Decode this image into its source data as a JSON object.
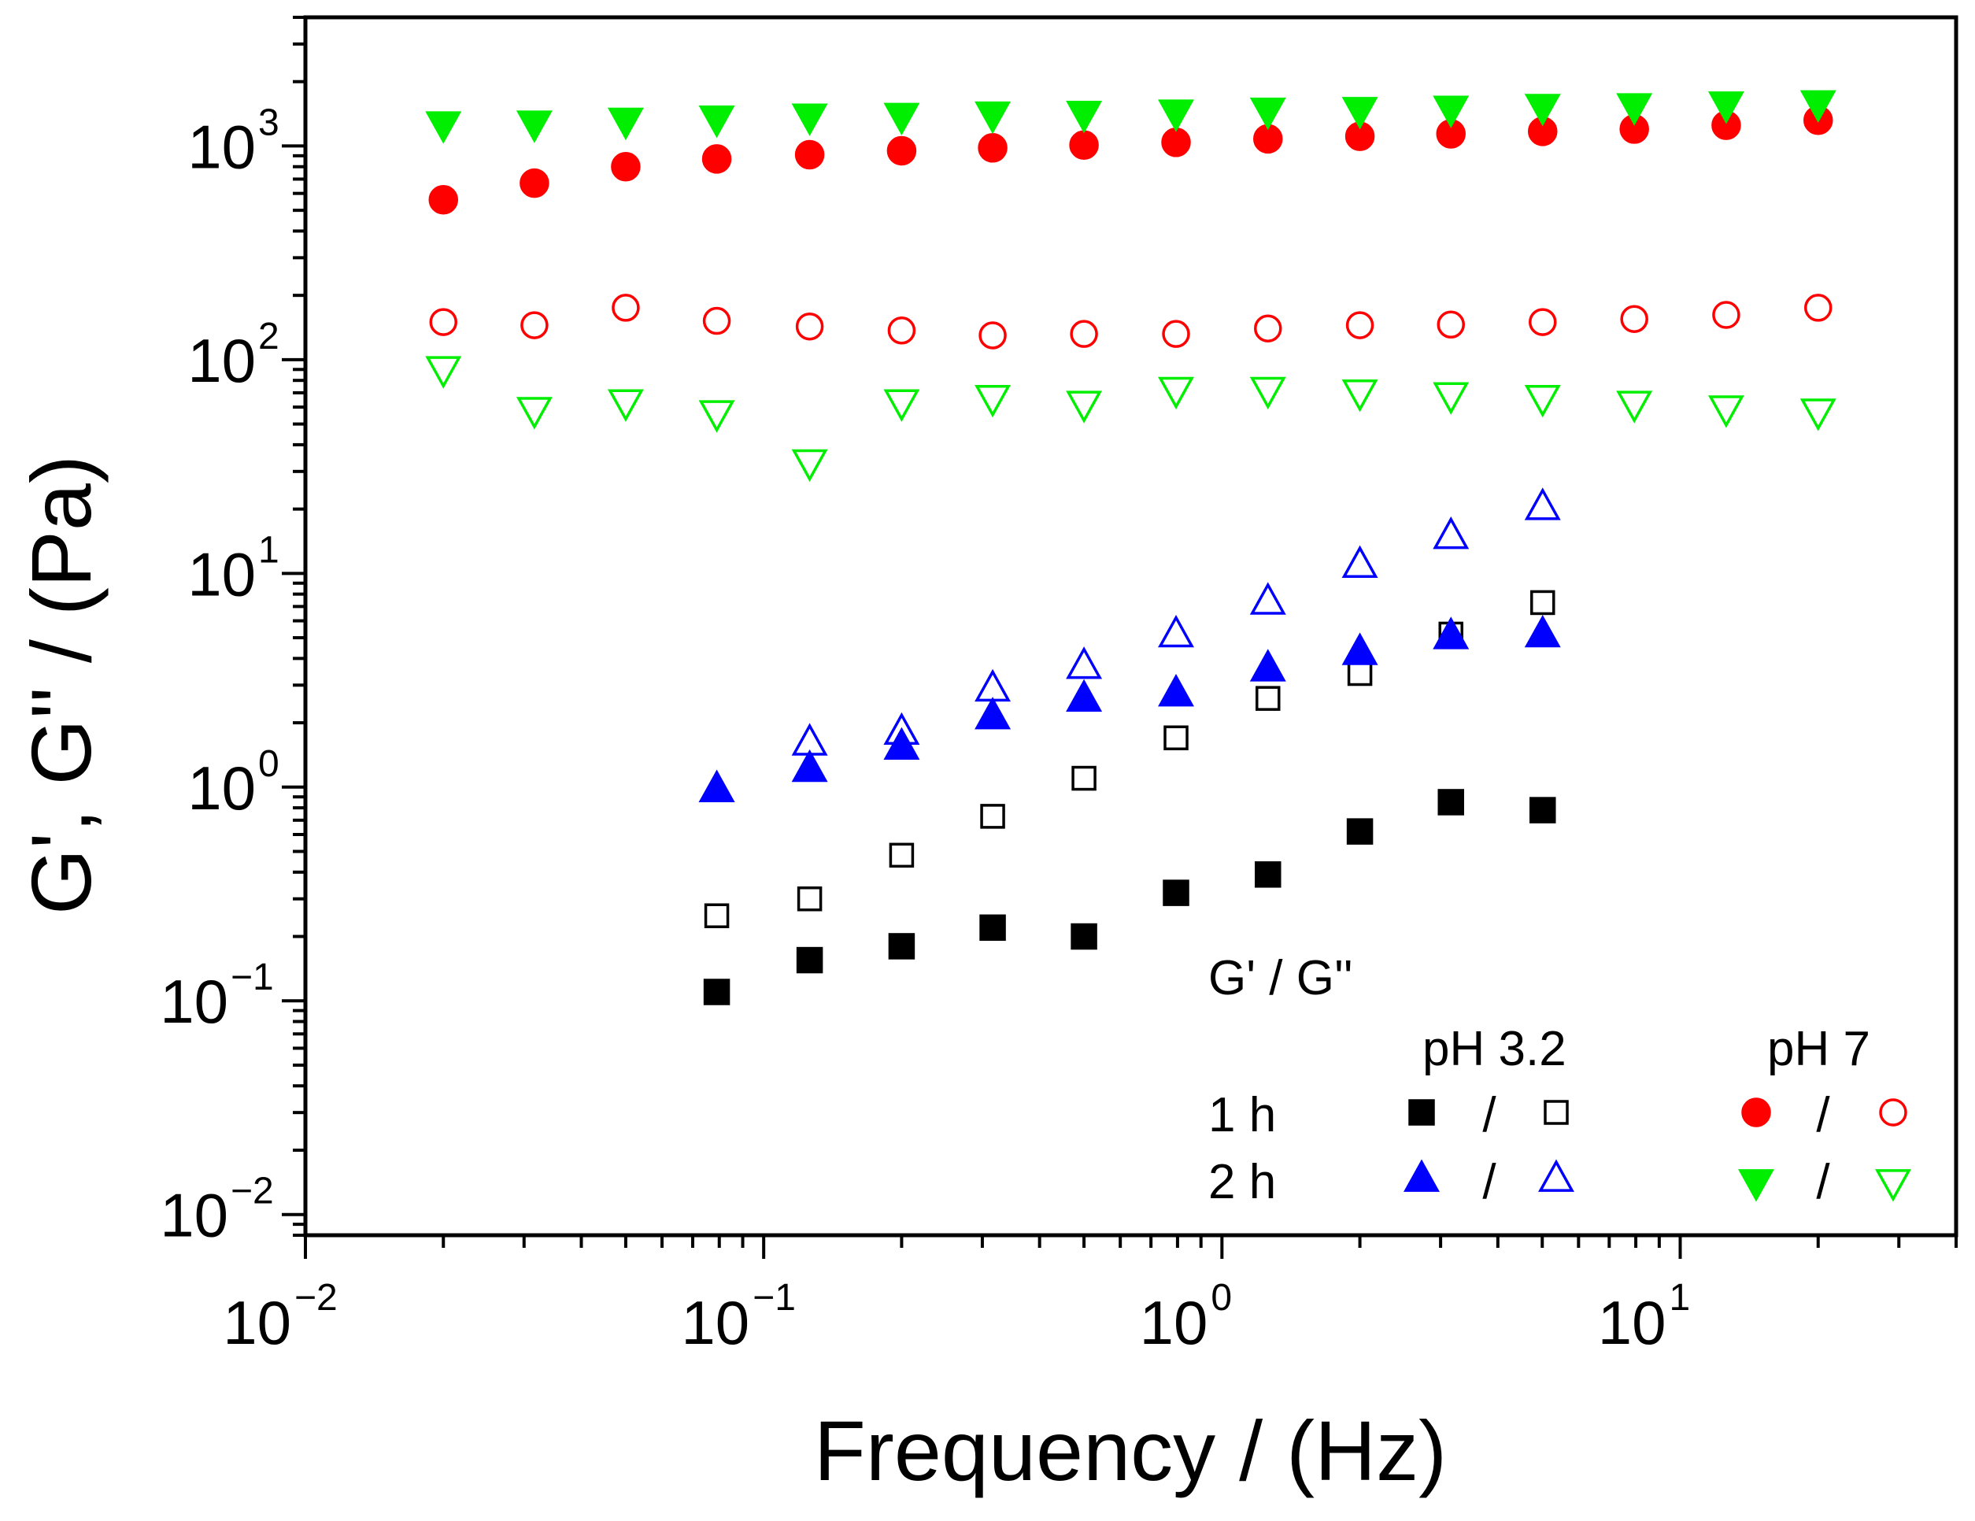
{
  "chart_data": {
    "type": "scatter",
    "xscale": "log",
    "yscale": "log",
    "xlim": [
      0.01,
      40
    ],
    "ylim": [
      0.008,
      4000
    ],
    "xlabel": "Frequency / (Hz)",
    "ylabel": "G', G'' / (Pa)",
    "x_ticks": [
      {
        "value": 0.01,
        "base": "10",
        "exp": "−2"
      },
      {
        "value": 0.1,
        "base": "10",
        "exp": "−1"
      },
      {
        "value": 1,
        "base": "10",
        "exp": "0"
      },
      {
        "value": 10,
        "base": "10",
        "exp": "1"
      }
    ],
    "y_ticks": [
      {
        "value": 0.01,
        "base": "10",
        "exp": "−2"
      },
      {
        "value": 0.1,
        "base": "10",
        "exp": "−1"
      },
      {
        "value": 1,
        "base": "10",
        "exp": "0"
      },
      {
        "value": 10,
        "base": "10",
        "exp": "1"
      },
      {
        "value": 100,
        "base": "10",
        "exp": "2"
      },
      {
        "value": 1000,
        "base": "10",
        "exp": "3"
      }
    ],
    "legend": {
      "header": "G' / G''",
      "col_ph32": "pH 3.2",
      "col_ph7": "pH 7",
      "row_1h": "1 h",
      "row_2h": "2 h",
      "separator": "/"
    },
    "series": [
      {
        "name": "pH 3.2, 1 h, G'",
        "marker": "square",
        "filled": true,
        "color": "#000000",
        "x": [
          0.079,
          0.126,
          0.2,
          0.316,
          0.5,
          0.794,
          1.26,
          2.0,
          3.16,
          5.01
        ],
        "y": [
          0.11,
          0.155,
          0.18,
          0.22,
          0.2,
          0.32,
          0.39,
          0.62,
          0.85,
          0.78
        ]
      },
      {
        "name": "pH 3.2, 1 h, G''",
        "marker": "square",
        "filled": false,
        "color": "#000000",
        "x": [
          0.079,
          0.126,
          0.2,
          0.316,
          0.5,
          0.794,
          1.26,
          2.0,
          3.16,
          5.01
        ],
        "y": [
          0.25,
          0.3,
          0.48,
          0.73,
          1.1,
          1.7,
          2.6,
          3.4,
          5.2,
          7.3
        ]
      },
      {
        "name": "pH 3.2, 2 h, G'",
        "marker": "triangle-up",
        "filled": true,
        "color": "#0000ff",
        "x": [
          0.079,
          0.126,
          0.2,
          0.316,
          0.5,
          0.794,
          1.26,
          2.0,
          3.16,
          5.01
        ],
        "y": [
          0.98,
          1.22,
          1.55,
          2.15,
          2.6,
          2.75,
          3.6,
          4.3,
          5.1,
          5.2
        ]
      },
      {
        "name": "pH 3.2, 2 h, G''",
        "marker": "triangle-up",
        "filled": false,
        "color": "#0000ff",
        "x": [
          0.079,
          0.126,
          0.2,
          0.316,
          0.5,
          0.794,
          1.26,
          2.0,
          3.16,
          5.01
        ],
        "y": [
          0.98,
          1.62,
          1.82,
          2.9,
          3.7,
          5.2,
          7.4,
          11.0,
          15.0,
          20.5
        ]
      },
      {
        "name": "pH 7, 1 h, G'",
        "marker": "circle",
        "filled": true,
        "color": "#ff0000",
        "x": [
          0.02,
          0.0316,
          0.05,
          0.079,
          0.126,
          0.2,
          0.316,
          0.5,
          0.794,
          1.26,
          2.0,
          3.16,
          5.01,
          7.94,
          12.6,
          20.0
        ],
        "y": [
          560,
          670,
          800,
          870,
          910,
          950,
          980,
          1010,
          1040,
          1080,
          1110,
          1140,
          1170,
          1200,
          1250,
          1320
        ]
      },
      {
        "name": "pH 7, 1 h, G''",
        "marker": "circle",
        "filled": false,
        "color": "#ff0000",
        "x": [
          0.02,
          0.0316,
          0.05,
          0.079,
          0.126,
          0.2,
          0.316,
          0.5,
          0.794,
          1.26,
          2.0,
          3.16,
          5.01,
          7.94,
          12.6,
          20.0
        ],
        "y": [
          150,
          145,
          175,
          152,
          143,
          137,
          130,
          132,
          132,
          140,
          145,
          146,
          150,
          155,
          162,
          175
        ]
      },
      {
        "name": "pH 7, 2 h, G'",
        "marker": "triangle-down",
        "filled": true,
        "color": "#00ee00",
        "x": [
          0.02,
          0.0316,
          0.05,
          0.079,
          0.126,
          0.2,
          0.316,
          0.5,
          0.794,
          1.26,
          2.0,
          3.16,
          5.01,
          7.94,
          12.6,
          20.0
        ],
        "y": [
          1260,
          1270,
          1310,
          1340,
          1370,
          1380,
          1400,
          1410,
          1430,
          1460,
          1470,
          1490,
          1520,
          1530,
          1560,
          1580
        ]
      },
      {
        "name": "pH 7, 2 h, G''",
        "marker": "triangle-down",
        "filled": false,
        "color": "#00ee00",
        "x": [
          0.02,
          0.0316,
          0.05,
          0.079,
          0.126,
          0.2,
          0.316,
          0.5,
          0.794,
          1.26,
          2.0,
          3.16,
          5.01,
          7.94,
          12.6,
          20.0
        ],
        "y": [
          90,
          58,
          63,
          56,
          33,
          63,
          66,
          62,
          72,
          72,
          70,
          68,
          66,
          62,
          59,
          57
        ]
      }
    ]
  }
}
